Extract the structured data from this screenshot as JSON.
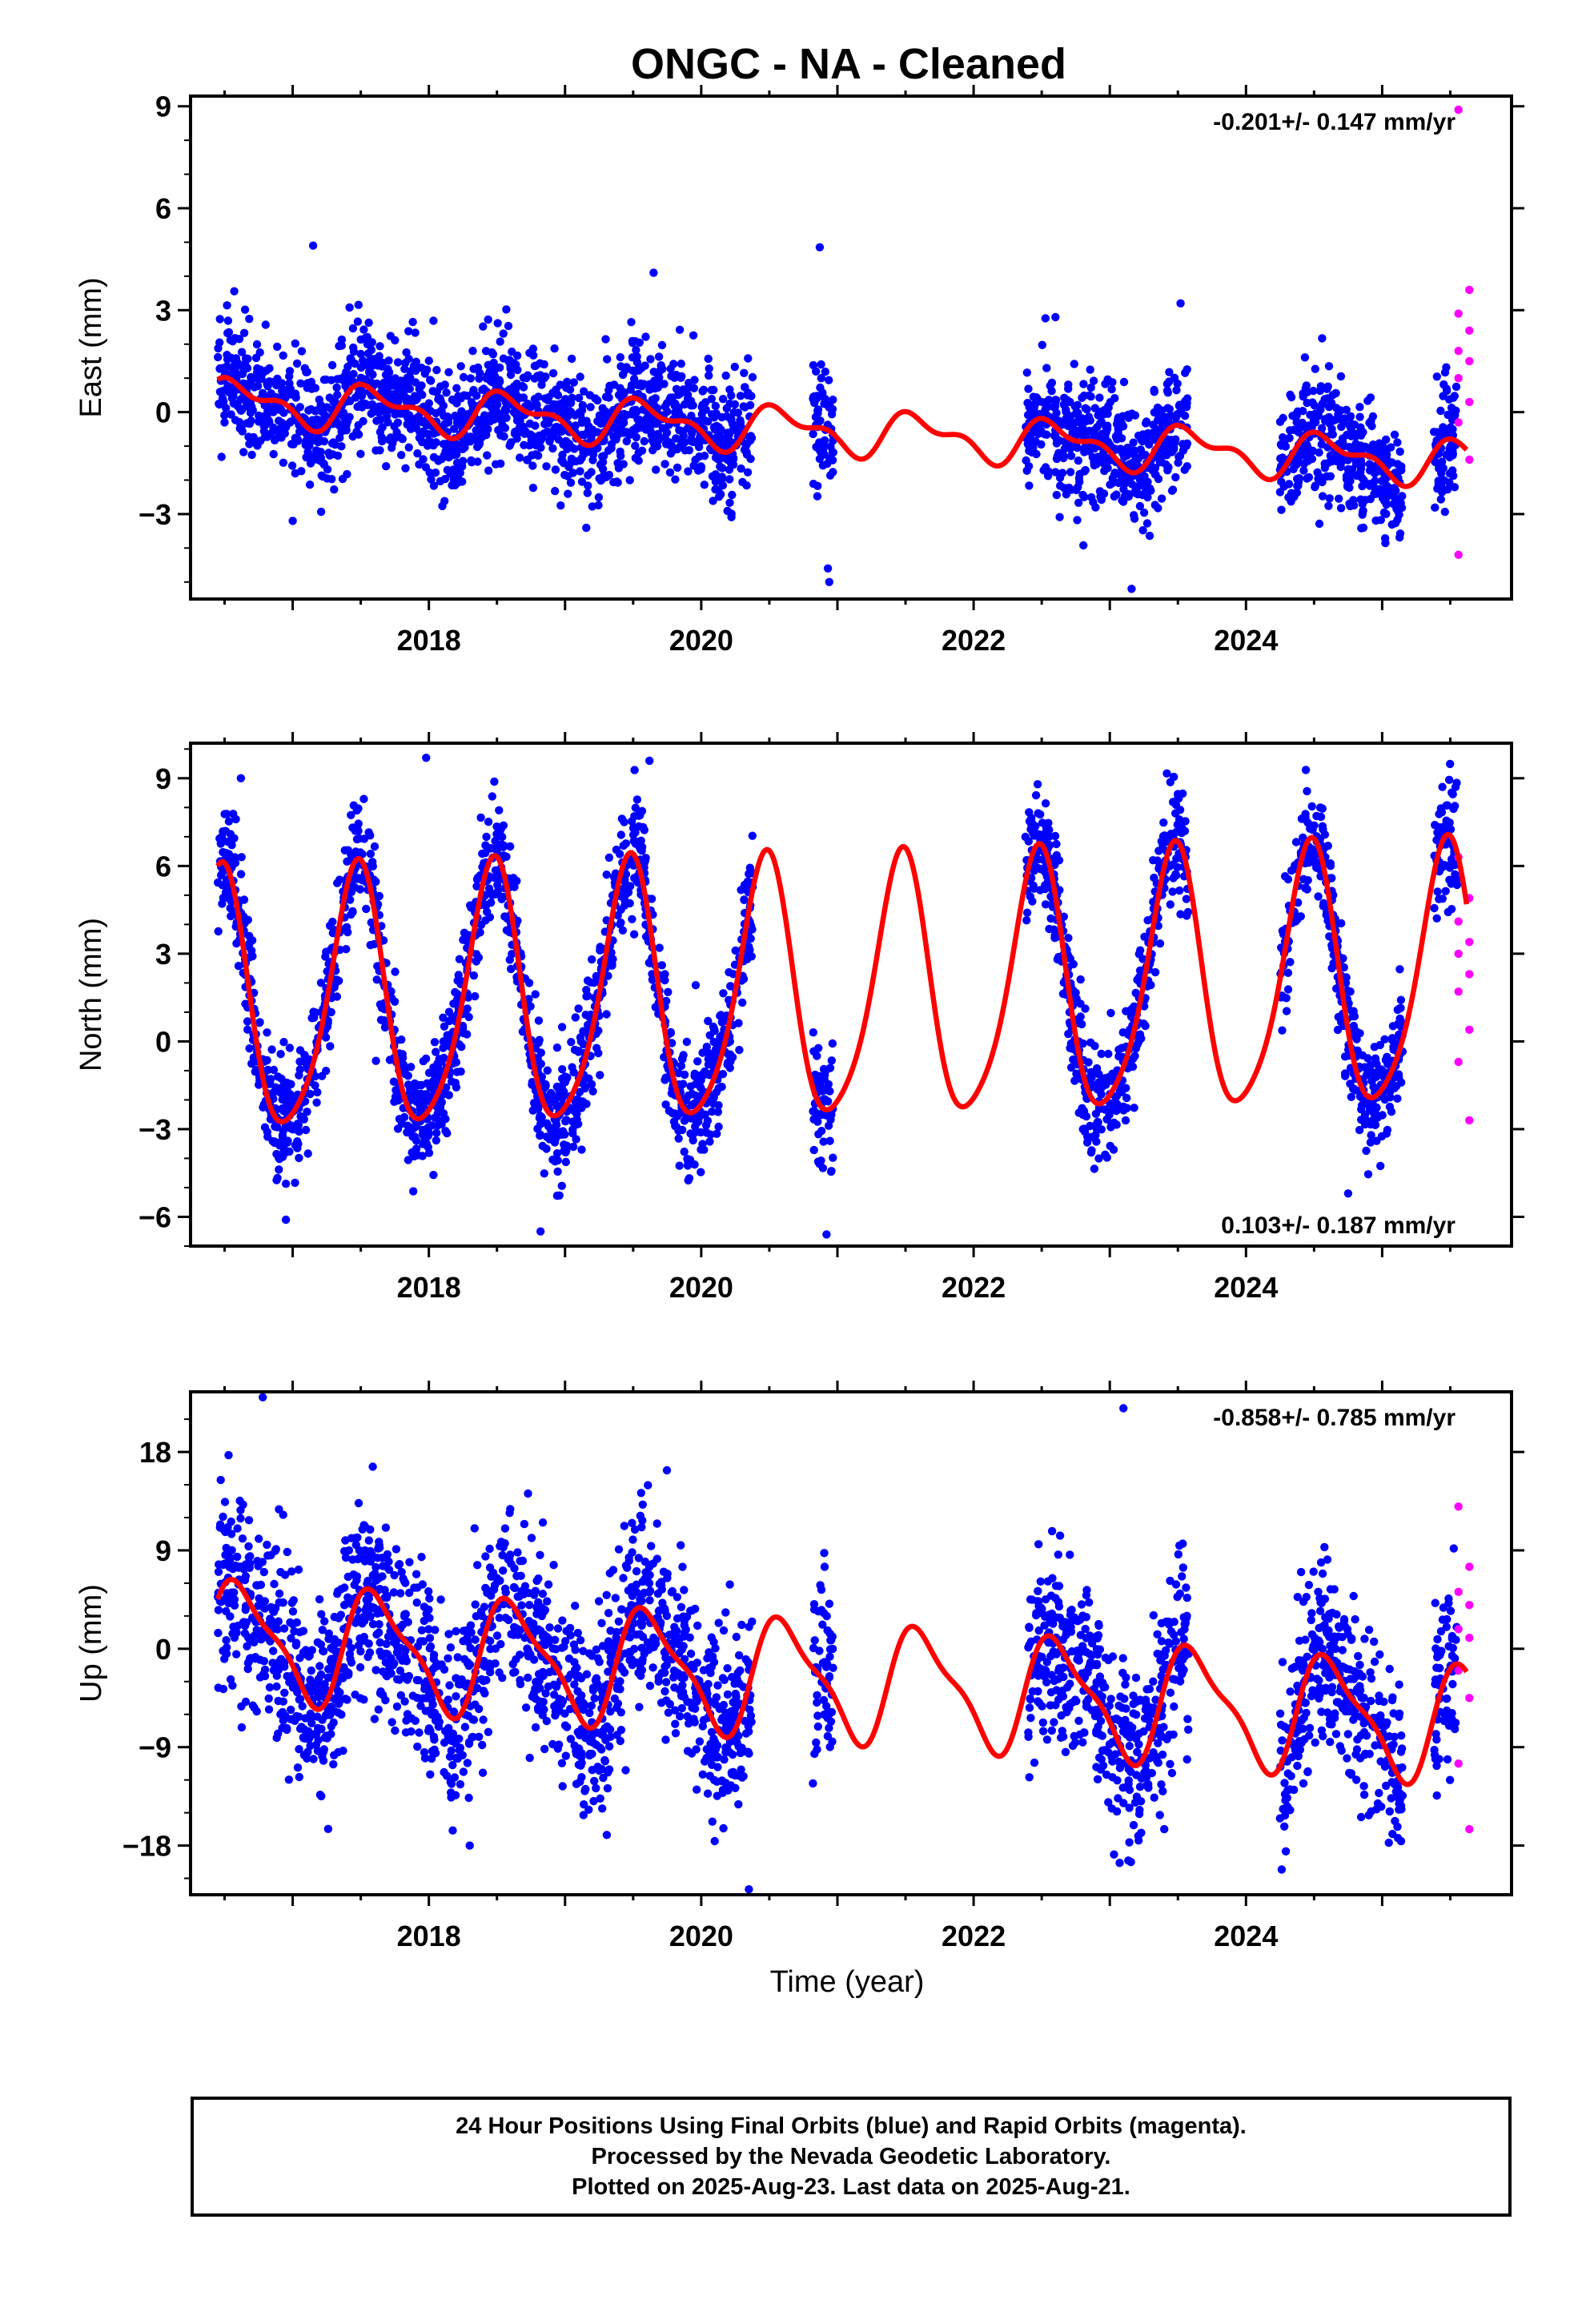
{
  "title": "ONGC  - NA - Cleaned",
  "x_axis_label": "Time (year)",
  "footer": {
    "line1": "24 Hour Positions Using Final Orbits (blue) and Rapid Orbits (magenta).",
    "line2": "Processed by the Nevada Geodetic Laboratory.",
    "line3": "Plotted on 2025-Aug-23. Last data on 2025-Aug-21."
  },
  "colors": {
    "final_orbits": "#0000ff",
    "rapid_orbits": "#ff00ff",
    "model_fit": "#ff0000"
  },
  "chart_data": [
    {
      "type": "scatter",
      "component": "east",
      "ylabel": "East (mm)",
      "rate_label": "-0.201+/- 0.147 mm/yr",
      "rate_position": "top-right",
      "xlim": [
        2016.25,
        2025.95
      ],
      "ylim": [
        -5.5,
        9.3
      ],
      "xticks": [
        2018,
        2020,
        2022,
        2024
      ],
      "yticks": [
        -3,
        0,
        3,
        6,
        9
      ],
      "grid": false,
      "model": {
        "offset": 0.35,
        "trend": -0.201,
        "annual_amp": 0.55,
        "annual_phase": 0.3,
        "semiannual_amp": 0.3,
        "semiannual_phase": 0.9,
        "ref_year": 2016.4
      },
      "final_segments": [
        [
          2016.45,
          2020.38
        ],
        [
          2020.82,
          2020.97
        ],
        [
          2022.38,
          2023.58
        ],
        [
          2024.25,
          2025.15
        ],
        [
          2025.38,
          2025.55
        ]
      ],
      "final_scatter_sd": 0.9,
      "rapid_x": [
        2025.56,
        2025.64
      ],
      "rapid_y": [
        8.9,
        3.6,
        2.9,
        2.4,
        1.8,
        1.5,
        1.0,
        0.3,
        -0.3,
        -1.4,
        -4.2
      ],
      "outliers": [
        [
          2017.15,
          4.9
        ],
        [
          2019.65,
          4.1
        ],
        [
          2020.87,
          4.85
        ],
        [
          2020.93,
          -4.6
        ],
        [
          2020.94,
          -5.0
        ],
        [
          2023.16,
          -5.2
        ],
        [
          2023.52,
          3.2
        ],
        [
          2017.0,
          -3.2
        ]
      ]
    },
    {
      "type": "scatter",
      "component": "north",
      "ylabel": "North (mm)",
      "rate_label": "0.103+/- 0.187 mm/yr",
      "rate_position": "bottom-right",
      "xlim": [
        2016.25,
        2025.95
      ],
      "ylim": [
        -7.0,
        10.2
      ],
      "xticks": [
        2018,
        2020,
        2022,
        2024
      ],
      "yticks": [
        -6,
        -3,
        0,
        3,
        6,
        9
      ],
      "grid": false,
      "model": {
        "offset": 1.1,
        "trend": 0.103,
        "annual_amp": 4.4,
        "annual_phase": 1.15,
        "semiannual_amp": 0.7,
        "semiannual_phase": 0.2,
        "ref_year": 2016.4
      },
      "final_segments": [
        [
          2016.45,
          2020.38
        ],
        [
          2020.82,
          2020.97
        ],
        [
          2022.38,
          2023.58
        ],
        [
          2024.25,
          2025.15
        ],
        [
          2025.38,
          2025.55
        ]
      ],
      "final_scatter_sd": 1.0,
      "rapid_x": [
        2025.56,
        2025.64
      ],
      "rapid_y": [
        6.3,
        4.9,
        4.1,
        3.4,
        3.0,
        2.3,
        1.7,
        0.4,
        -0.7,
        -2.7
      ],
      "outliers": [
        [
          2017.98,
          9.7
        ],
        [
          2019.62,
          9.6
        ],
        [
          2016.62,
          9.0
        ],
        [
          2020.92,
          -6.6
        ],
        [
          2016.95,
          -6.1
        ],
        [
          2018.82,
          -6.5
        ],
        [
          2024.75,
          -5.2
        ]
      ]
    },
    {
      "type": "scatter",
      "component": "up",
      "ylabel": "Up (mm)",
      "rate_label": "-0.858+/- 0.785 mm/yr",
      "rate_position": "top-right",
      "xlim": [
        2016.25,
        2025.95
      ],
      "ylim": [
        -22.5,
        23.5
      ],
      "xticks": [
        2018,
        2020,
        2022,
        2024
      ],
      "yticks": [
        -18,
        -9,
        0,
        9,
        18
      ],
      "grid": false,
      "model": {
        "offset": 1.0,
        "trend": -0.858,
        "annual_amp": 5.0,
        "annual_phase": 0.15,
        "semiannual_amp": 1.5,
        "semiannual_phase": 0.5,
        "ref_year": 2016.4
      },
      "final_segments": [
        [
          2016.45,
          2020.38
        ],
        [
          2020.82,
          2020.97
        ],
        [
          2022.38,
          2023.58
        ],
        [
          2024.25,
          2025.15
        ],
        [
          2025.38,
          2025.55
        ]
      ],
      "final_scatter_sd": 4.2,
      "rapid_x": [
        2025.56,
        2025.64
      ],
      "rapid_y": [
        13.0,
        7.5,
        5.2,
        4.0,
        1.8,
        1.0,
        -2.0,
        -4.5,
        -10.5,
        -16.5
      ],
      "outliers": [
        [
          2016.78,
          23.0
        ],
        [
          2023.1,
          22.0
        ],
        [
          2020.35,
          -22.0
        ],
        [
          2018.3,
          -18.0
        ],
        [
          2023.4,
          -16.5
        ]
      ]
    }
  ]
}
